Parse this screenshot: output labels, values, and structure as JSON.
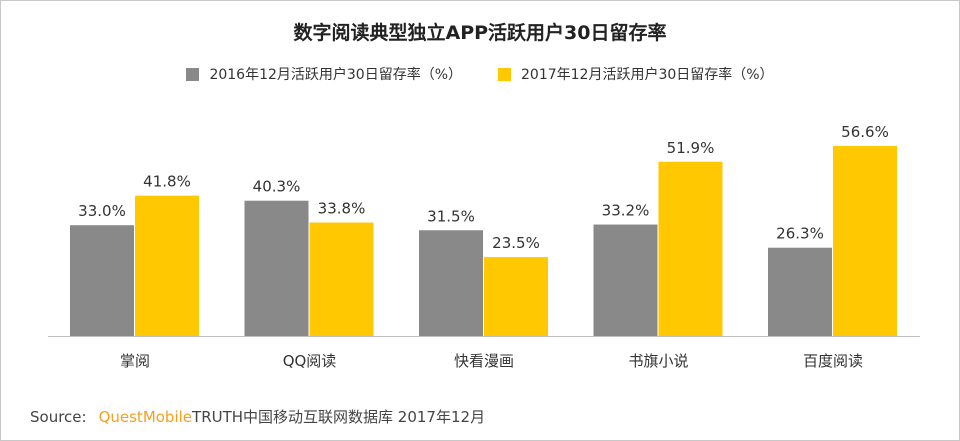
{
  "chart_data": {
    "type": "bar",
    "title": "数字阅读典型独立APP活跃用户30日留存率",
    "categories": [
      "掌阅",
      "QQ阅读",
      "快看漫画",
      "书旗小说",
      "百度阅读"
    ],
    "series": [
      {
        "name": "2016年12月活跃用户30日留存率（%）",
        "color": "#898989",
        "values": [
          33.0,
          40.3,
          31.5,
          33.2,
          26.3
        ]
      },
      {
        "name": "2017年12月活跃用户30日留存率（%）",
        "color": "#ffc800",
        "values": [
          41.8,
          33.8,
          23.5,
          51.9,
          56.6
        ]
      }
    ],
    "value_suffix": "%",
    "ylim": [
      0,
      60
    ],
    "grid": false,
    "legend": "top"
  },
  "source": {
    "label": "Source:",
    "brand": "QuestMobile",
    "text": "TRUTH中国移动互联网数据库 2017年12月"
  }
}
